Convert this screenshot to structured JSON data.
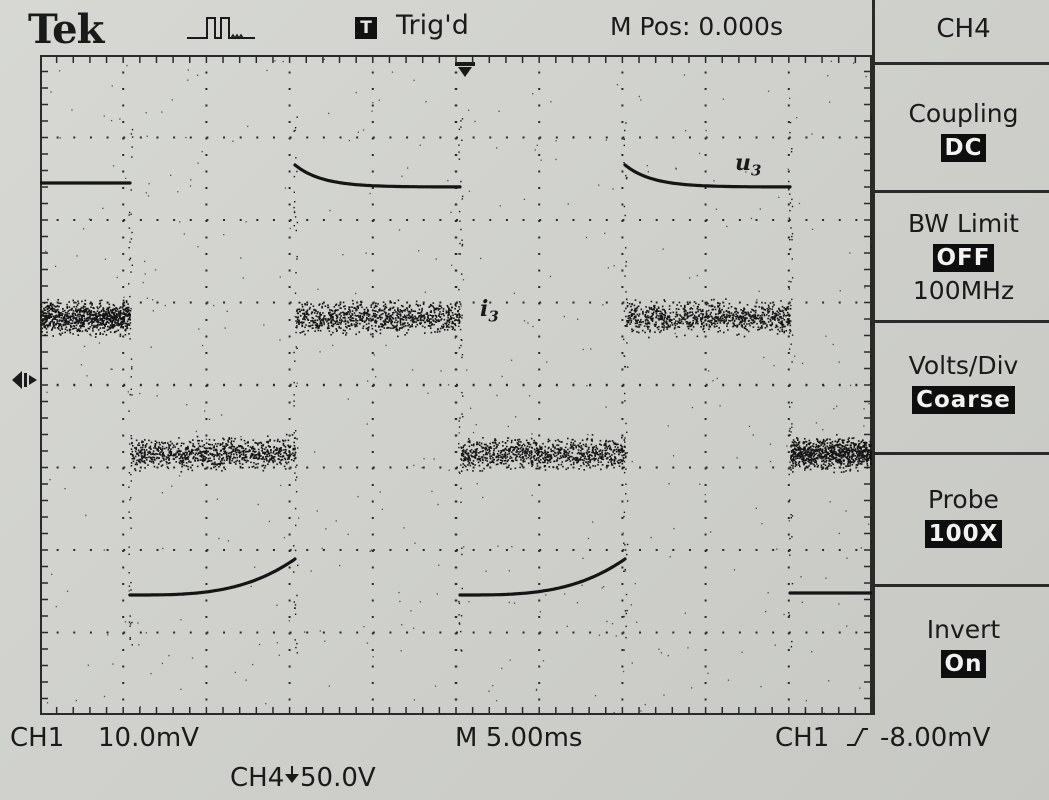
{
  "header": {
    "brand": "Tek",
    "acquire_icon": "pulse-run-icon",
    "trigger_badge": "T",
    "trigger_status": "Trig'd",
    "horizontal_position": "M Pos: 0.000s"
  },
  "side_menu": {
    "title": "CH4",
    "items": [
      {
        "label": "Coupling",
        "value": "DC",
        "extra": ""
      },
      {
        "label": "BW Limit",
        "value": "OFF",
        "extra": "100MHz"
      },
      {
        "label": "Volts/Div",
        "value": "Coarse",
        "extra": ""
      },
      {
        "label": "Probe",
        "value": "100X",
        "extra": ""
      },
      {
        "label": "Invert",
        "value": "On",
        "extra": ""
      }
    ]
  },
  "status_bar": {
    "ch1_label": "CH1",
    "ch1_scale": "10.0mV",
    "timebase": "M 5.00ms",
    "trigger_source": "CH1",
    "trigger_level": "-8.00mV",
    "ch4_label": "CH4",
    "ch4_scale": "50.0V"
  },
  "annotations": {
    "u3": {
      "letter": "u",
      "sub": "3"
    },
    "i3": {
      "letter": "i",
      "sub": "3"
    }
  },
  "colors": {
    "screen": "#cfd0cc",
    "trace": "#151515",
    "grid": "#2a2a2a",
    "highlight_bg": "#0e0e0e"
  }
}
